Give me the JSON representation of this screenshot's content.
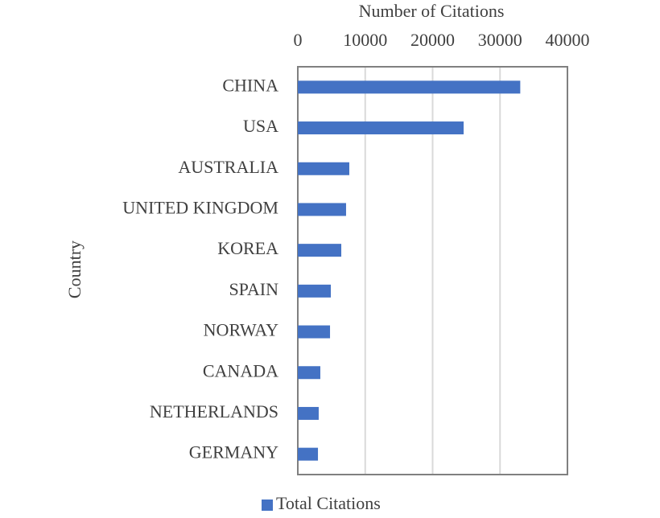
{
  "chart_data": {
    "type": "bar",
    "orientation": "horizontal",
    "x_label": "Number of Citations",
    "y_label": "Country",
    "categories": [
      "CHINA",
      "USA",
      "AUSTRALIA",
      "UNITED KINGDOM",
      "KOREA",
      "SPAIN",
      "NORWAY",
      "CANADA",
      "NETHERLANDS",
      "GERMANY"
    ],
    "series": [
      {
        "name": "Total Citations",
        "color": "#4472c4",
        "values": [
          33000,
          24600,
          7640,
          7160,
          6450,
          4900,
          4780,
          3340,
          3100,
          2990
        ]
      }
    ],
    "xlim": [
      0,
      40000
    ],
    "xticks": [
      0,
      10000,
      20000,
      30000,
      40000
    ],
    "grid": true,
    "legend": "bottom"
  }
}
